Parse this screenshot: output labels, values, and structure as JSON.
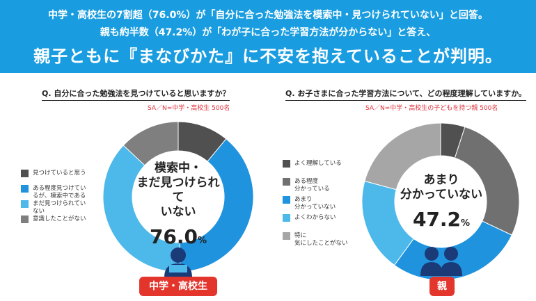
{
  "header": {
    "line1": "中学・高校生の7割超（76.0%）が「自分に合った勉強法を模索中・見つけられていない」と回答。",
    "line2": "親も約半数（47.2%）が「わが子に合った学習方法が分からない」と答え、",
    "line3": "親子ともに『まなびかた』に不安を抱えていることが判明。"
  },
  "left": {
    "question": "Q. 自分に合った勉強法を見つけていると思いますか？",
    "sample": "SA／N=中学・高校生 500名",
    "legend": [
      {
        "label": "見つけていると思う",
        "color": "#505050"
      },
      {
        "label": "ある程度見つけてい\nるが、模索中である",
        "color": "#1f93de"
      },
      {
        "label": "まだ見つけられてい\nない",
        "color": "#4db8ea"
      },
      {
        "label": "意識したことがない",
        "color": "#7f7f7f"
      }
    ],
    "center_text": "模索中・\nまだ見つけられて\nいない",
    "center_value": "76.0",
    "center_unit": "%",
    "badge": "中学・高校生"
  },
  "right": {
    "question": "Q. お子さまに合った学習方法について、どの程度理解していますか。",
    "sample": "SA／N=中学・高校生の子どもを持つ親 500名",
    "legend": [
      {
        "label": "よく理解している",
        "color": "#505050"
      },
      {
        "label": "ある程度\n分かっている",
        "color": "#707070"
      },
      {
        "label": "あまり\n分かっていない",
        "color": "#1f93de"
      },
      {
        "label": "よくわからない",
        "color": "#4db8ea"
      },
      {
        "label": "特に\n気にしたことがない",
        "color": "#a6a6a6"
      }
    ],
    "center_text": "あまり\n分かっていない",
    "center_value": "47.2",
    "center_unit": "%",
    "badge": "親"
  },
  "chart_data": [
    {
      "type": "pie",
      "title": "Q. 自分に合った勉強法を見つけていると思いますか？",
      "categories": [
        "見つけていると思う",
        "ある程度見つけているが、模索中である",
        "まだ見つけられていない",
        "意識したことがない"
      ],
      "values": [
        11.0,
        38.5,
        37.5,
        13.0
      ],
      "colors": [
        "#505050",
        "#1f93de",
        "#4db8ea",
        "#7f7f7f"
      ]
    },
    {
      "type": "pie",
      "title": "Q. お子さまに合った学習方法について、どの程度理解していますか。",
      "categories": [
        "よく理解している",
        "ある程度分かっている",
        "あまり分かっていない",
        "よくわからない",
        "特に気にしたことがない"
      ],
      "values": [
        5.0,
        27.0,
        28.0,
        19.2,
        20.8
      ],
      "colors": [
        "#505050",
        "#707070",
        "#1f93de",
        "#4db8ea",
        "#a6a6a6"
      ]
    }
  ]
}
